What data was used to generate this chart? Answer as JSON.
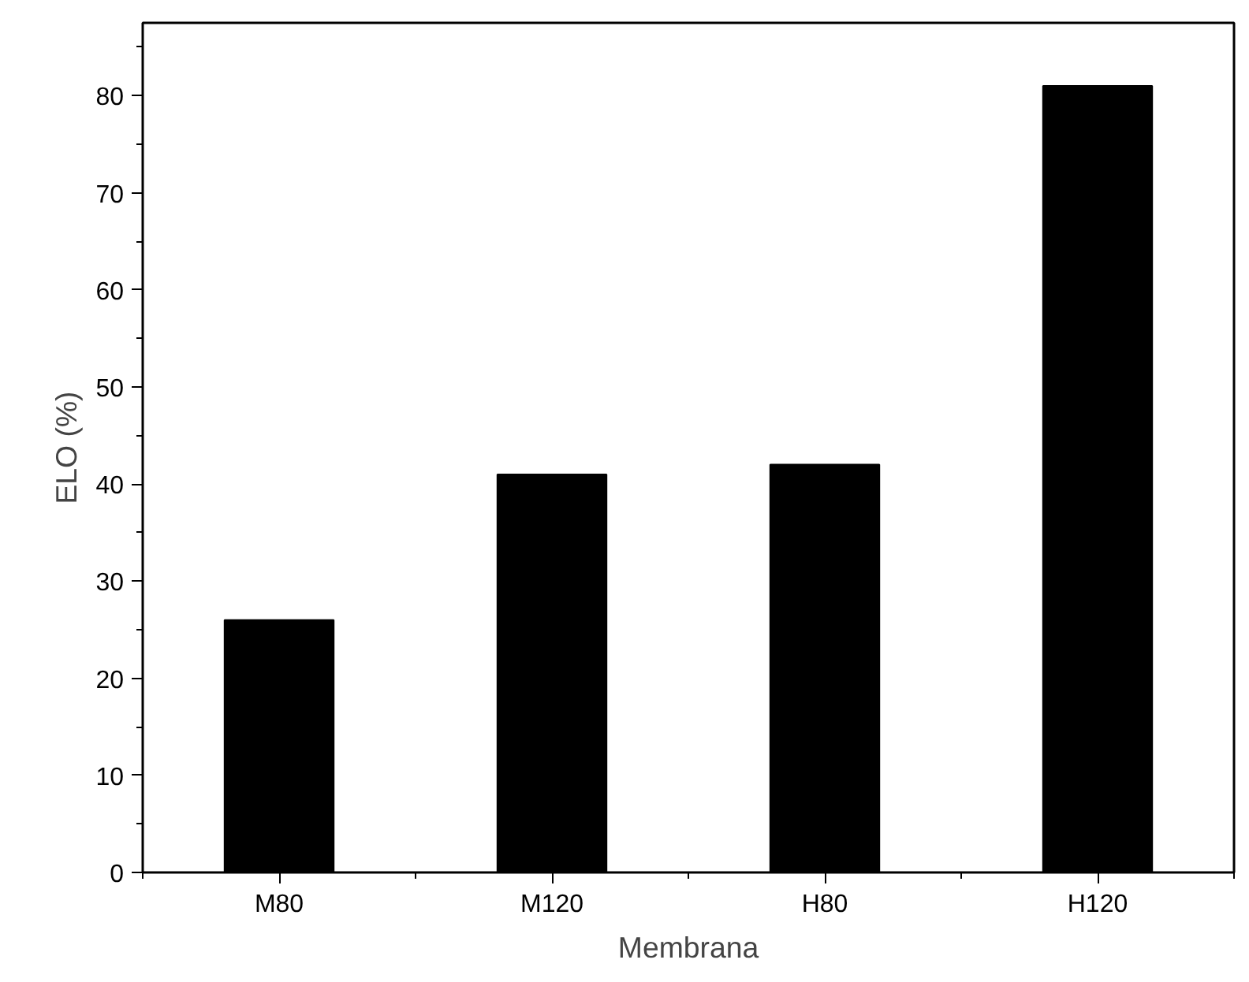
{
  "chart_data": {
    "type": "bar",
    "xlabel": "Membrana",
    "ylabel": "ELO (%)",
    "categories": [
      "M80",
      "M120",
      "H80",
      "H120"
    ],
    "values": [
      26,
      41,
      42,
      81
    ],
    "color": "#000000",
    "ylim": [
      0,
      87.5
    ],
    "yticks": [
      0,
      10,
      20,
      30,
      40,
      50,
      60,
      70,
      80
    ],
    "grid": false
  }
}
